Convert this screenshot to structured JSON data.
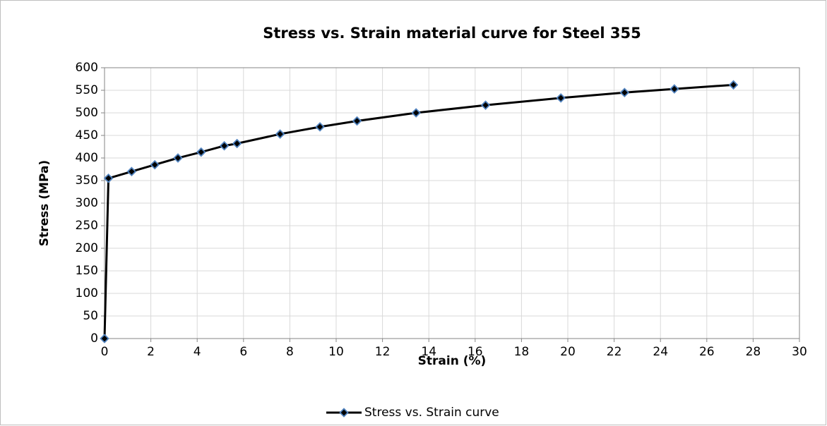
{
  "chart_data": {
    "type": "line",
    "title": "Stress vs. Strain material curve for Steel 355",
    "x_label": "Strain (%)",
    "y_label": "Stress (MPa)",
    "x": [
      0,
      0.17,
      1.17,
      2.17,
      3.17,
      4.17,
      5.17,
      5.72,
      7.58,
      9.3,
      10.9,
      13.45,
      16.45,
      19.7,
      22.45,
      24.6,
      27.15
    ],
    "series": [
      {
        "name": "Stress vs. Strain curve",
        "color": "#000000",
        "marker_color": "#4f81bd",
        "values": [
          0,
          355,
          370,
          385,
          400,
          413,
          427,
          432,
          453,
          469,
          482,
          500,
          517,
          533,
          545,
          553,
          562
        ]
      }
    ],
    "xlim": [
      0,
      30
    ],
    "xticks": [
      0,
      2,
      4,
      6,
      8,
      10,
      12,
      14,
      16,
      18,
      20,
      22,
      24,
      26,
      28,
      30
    ],
    "ylim": [
      0,
      600
    ],
    "yticks": [
      0,
      50,
      100,
      150,
      200,
      250,
      300,
      350,
      400,
      450,
      500,
      550,
      600
    ],
    "grid": true,
    "legend": "bottom"
  }
}
